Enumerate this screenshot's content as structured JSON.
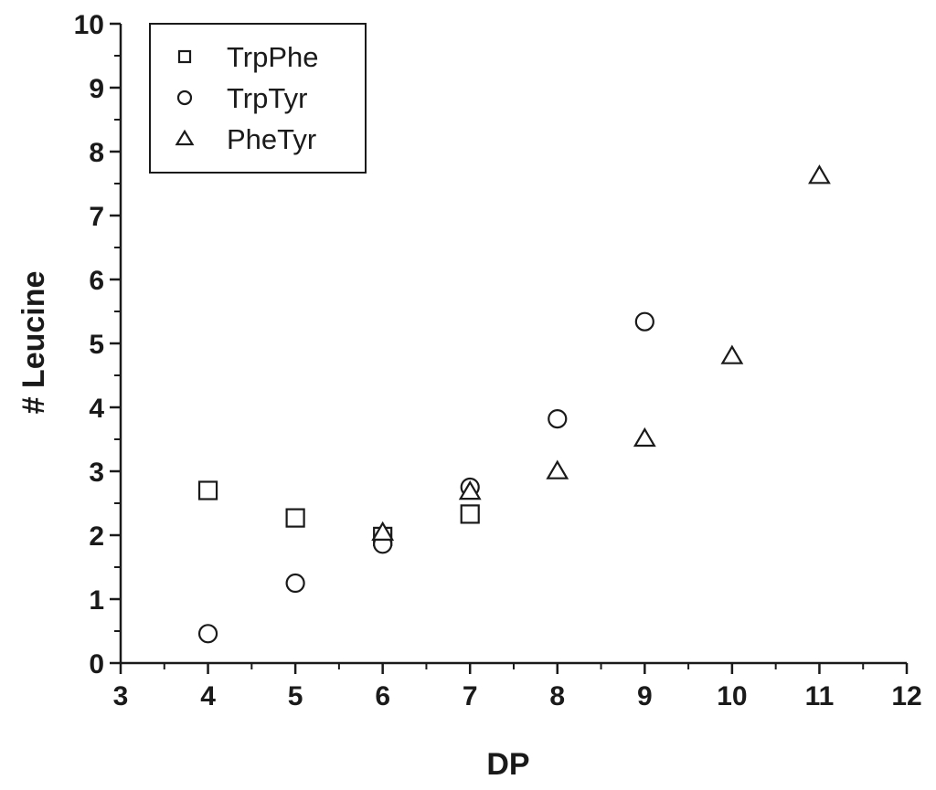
{
  "chart_data": {
    "type": "scatter",
    "title": "",
    "xlabel": "DP",
    "ylabel": "# Leucine",
    "xlim": [
      3,
      12
    ],
    "ylim": [
      0,
      10
    ],
    "xticks": [
      3,
      4,
      5,
      6,
      7,
      8,
      9,
      10,
      11,
      12
    ],
    "yticks": [
      0,
      1,
      2,
      3,
      4,
      5,
      6,
      7,
      8,
      9,
      10
    ],
    "grid": false,
    "legend_position": "top-left",
    "series": [
      {
        "name": "TrpPhe",
        "marker": "square",
        "x": [
          4,
          5,
          6,
          7
        ],
        "y": [
          2.7,
          2.27,
          1.98,
          2.33
        ]
      },
      {
        "name": "TrpTyr",
        "marker": "circle",
        "x": [
          4,
          5,
          6,
          7,
          8,
          9
        ],
        "y": [
          0.46,
          1.25,
          1.86,
          2.75,
          3.82,
          5.34
        ]
      },
      {
        "name": "PheTyr",
        "marker": "triangle",
        "x": [
          6,
          7,
          8,
          9,
          10,
          11
        ],
        "y": [
          2.04,
          2.68,
          3.0,
          3.51,
          4.8,
          7.62
        ]
      }
    ],
    "colors": {
      "axis": "#1a1a1a",
      "marker_stroke": "#1a1a1a",
      "marker_fill": "#ffffff",
      "background": "#ffffff"
    }
  }
}
